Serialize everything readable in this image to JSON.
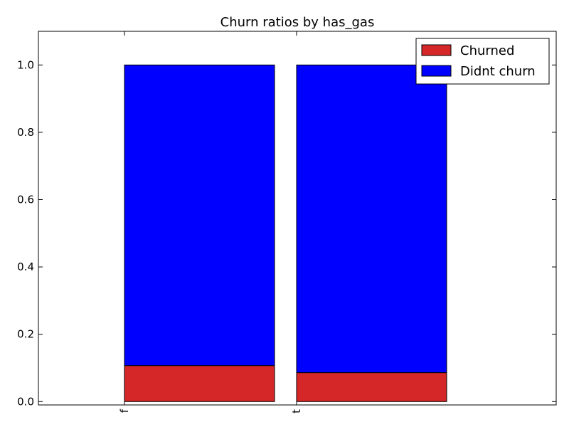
{
  "chart_data": {
    "type": "bar",
    "stacked": true,
    "title": "Churn ratios by has_gas",
    "xlabel": "",
    "ylabel": "",
    "categories": [
      "f",
      "t"
    ],
    "series": [
      {
        "name": "Churned",
        "values": [
          0.107,
          0.086
        ],
        "color": "#d62728"
      },
      {
        "name": "Didnt churn",
        "values": [
          0.893,
          0.914
        ],
        "color": "#0000ff"
      }
    ],
    "ylim": [
      -0.01,
      1.1
    ],
    "yticks": [
      "0.0",
      "0.2",
      "0.4",
      "0.6",
      "0.8",
      "1.0"
    ],
    "ytick_values": [
      0.0,
      0.2,
      0.4,
      0.6,
      0.8,
      1.0
    ],
    "grid": false,
    "legend_position": "top-right",
    "x_tick_label_rotation": "vertical"
  }
}
